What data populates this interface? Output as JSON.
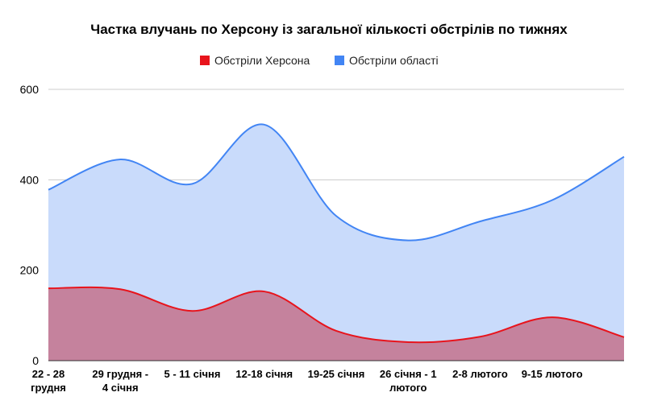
{
  "chart_data": {
    "type": "area",
    "title": "Частка влучань по Херсону із загальної кількості обстрілів по тижнях",
    "xlabel": "",
    "ylabel": "",
    "categories": [
      [
        "22 - 28",
        "грудня"
      ],
      [
        "29 грудня -",
        "4 січня"
      ],
      [
        "5 - 11 січня"
      ],
      [
        "12-18 січня"
      ],
      [
        "19-25 січня"
      ],
      [
        "26 січня - 1",
        "лютого"
      ],
      [
        "2-8 лютого"
      ],
      [
        "9-15 лютого"
      ],
      [
        ""
      ]
    ],
    "ylim": [
      0,
      600
    ],
    "yticks": [
      0,
      200,
      400,
      600
    ],
    "grid": true,
    "legend_position": "top",
    "series": [
      {
        "name": "Обстріли Херсона",
        "color": "#e8141c",
        "fill": "#c5829d",
        "values": [
          160,
          158,
          110,
          153,
          66,
          41,
          53,
          96,
          52
        ]
      },
      {
        "name": "Обстріли області",
        "color": "#4285f4",
        "fill": "#c9dbfb",
        "values": [
          378,
          445,
          391,
          522,
          320,
          266,
          308,
          355,
          451
        ]
      }
    ]
  }
}
